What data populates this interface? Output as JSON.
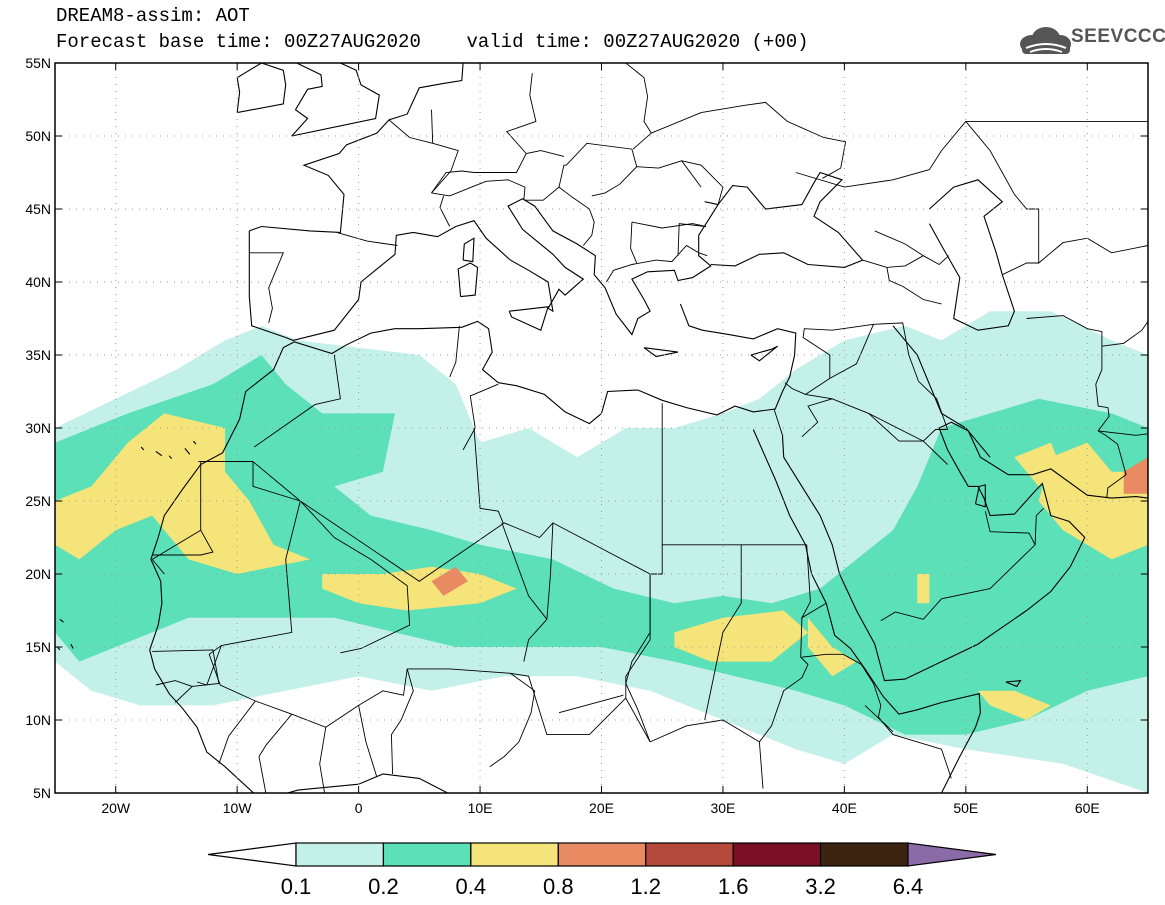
{
  "title": {
    "line1": "DREAM8-assim: AOT",
    "line2": "Forecast base time: 00Z27AUG2020    valid time: 00Z27AUG2020 (+00)"
  },
  "logo": {
    "text": "SEEVCCC",
    "icon": "cloud-icon"
  },
  "map": {
    "lon_range": [
      -25,
      65
    ],
    "lat_range": [
      5,
      55
    ],
    "lat_ticks": [
      {
        "value": 55,
        "label": "55N"
      },
      {
        "value": 50,
        "label": "50N"
      },
      {
        "value": 45,
        "label": "45N"
      },
      {
        "value": 40,
        "label": "40N"
      },
      {
        "value": 35,
        "label": "35N"
      },
      {
        "value": 30,
        "label": "30N"
      },
      {
        "value": 25,
        "label": "25N"
      },
      {
        "value": 20,
        "label": "20N"
      },
      {
        "value": 15,
        "label": "15N"
      },
      {
        "value": 10,
        "label": "10N"
      },
      {
        "value": 5,
        "label": "5N"
      }
    ],
    "lon_ticks": [
      {
        "value": -20,
        "label": "20W"
      },
      {
        "value": -10,
        "label": "10W"
      },
      {
        "value": 0,
        "label": "0"
      },
      {
        "value": 10,
        "label": "10E"
      },
      {
        "value": 20,
        "label": "20E"
      },
      {
        "value": 30,
        "label": "30E"
      },
      {
        "value": 40,
        "label": "40E"
      },
      {
        "value": 50,
        "label": "50E"
      },
      {
        "value": 60,
        "label": "60E"
      }
    ]
  },
  "colorbar": {
    "labels": [
      "0.1",
      "0.2",
      "0.4",
      "0.8",
      "1.2",
      "1.6",
      "3.2",
      "6.4"
    ],
    "colors": [
      "#c4f0ea",
      "#5ce0b8",
      "#f5e479",
      "#e88a62",
      "#b5493b",
      "#7a0f25",
      "#3c2410",
      "#8a6aa7"
    ],
    "under_color": "#ffffff"
  },
  "aot_fields": [
    {
      "level": 1,
      "color": "#c4f0ea",
      "polys": [
        [
          [
            -25,
            30
          ],
          [
            -20,
            32
          ],
          [
            -15,
            34
          ],
          [
            -11,
            36
          ],
          [
            -8,
            37
          ],
          [
            -5,
            36
          ],
          [
            0,
            35.5
          ],
          [
            5,
            35
          ],
          [
            8,
            33
          ],
          [
            10,
            29
          ],
          [
            14,
            30
          ],
          [
            18,
            28
          ],
          [
            22,
            30
          ],
          [
            26,
            30
          ],
          [
            30,
            31
          ],
          [
            33,
            32
          ],
          [
            36,
            34
          ],
          [
            40,
            36
          ],
          [
            45,
            37
          ],
          [
            48,
            36
          ],
          [
            52,
            38
          ],
          [
            57,
            38
          ],
          [
            62,
            36
          ],
          [
            65,
            35
          ],
          [
            65,
            5
          ],
          [
            58,
            7
          ],
          [
            50,
            8
          ],
          [
            44,
            9
          ],
          [
            40,
            7
          ],
          [
            36,
            8
          ],
          [
            30,
            10
          ],
          [
            24,
            12
          ],
          [
            18,
            13
          ],
          [
            12,
            13
          ],
          [
            6,
            12
          ],
          [
            0,
            13
          ],
          [
            -6,
            12
          ],
          [
            -12,
            11
          ],
          [
            -18,
            11
          ],
          [
            -22,
            12
          ],
          [
            -25,
            14
          ]
        ]
      ]
    },
    {
      "level": 2,
      "color": "#5ce0b8",
      "polys": [
        [
          [
            -25,
            29
          ],
          [
            -19,
            31
          ],
          [
            -12,
            33
          ],
          [
            -8,
            35
          ],
          [
            -6,
            33
          ],
          [
            -3,
            31
          ],
          [
            0,
            31
          ],
          [
            3,
            31
          ],
          [
            2,
            27
          ],
          [
            -2,
            26
          ],
          [
            1,
            24
          ],
          [
            6,
            23
          ],
          [
            10,
            22
          ],
          [
            16,
            21
          ],
          [
            21,
            19
          ],
          [
            26,
            18
          ],
          [
            30,
            18.5
          ],
          [
            34,
            18
          ],
          [
            38,
            19
          ],
          [
            41,
            21
          ],
          [
            44,
            23
          ],
          [
            46,
            26
          ],
          [
            48,
            30
          ],
          [
            52,
            31
          ],
          [
            56,
            32
          ],
          [
            62,
            31
          ],
          [
            65,
            30
          ],
          [
            65,
            13
          ],
          [
            60,
            12
          ],
          [
            55,
            10
          ],
          [
            50,
            9
          ],
          [
            45,
            9
          ],
          [
            40,
            11
          ],
          [
            36,
            12
          ],
          [
            31,
            13
          ],
          [
            26,
            14
          ],
          [
            20,
            15
          ],
          [
            14,
            15
          ],
          [
            8,
            15
          ],
          [
            3,
            16
          ],
          [
            -2,
            17
          ],
          [
            -7,
            17
          ],
          [
            -14,
            17
          ],
          [
            -20,
            15
          ],
          [
            -23,
            14
          ],
          [
            -25,
            16
          ]
        ]
      ]
    },
    {
      "level": 3,
      "color": "#f5e479",
      "polys": [
        [
          [
            -25,
            25
          ],
          [
            -22,
            26
          ],
          [
            -19,
            29
          ],
          [
            -16,
            31
          ],
          [
            -11,
            30
          ],
          [
            -11,
            27
          ],
          [
            -9,
            25
          ],
          [
            -7,
            22
          ],
          [
            -4,
            21
          ],
          [
            -10,
            20
          ],
          [
            -14,
            21
          ],
          [
            -17,
            24
          ],
          [
            -20,
            23
          ],
          [
            -23,
            21
          ],
          [
            -25,
            22
          ]
        ],
        [
          [
            -3,
            20
          ],
          [
            2,
            20
          ],
          [
            6,
            20.5
          ],
          [
            10,
            20
          ],
          [
            13,
            19
          ],
          [
            10,
            18
          ],
          [
            4,
            17.5
          ],
          [
            0,
            18
          ],
          [
            -3,
            19
          ]
        ],
        [
          [
            26,
            16
          ],
          [
            30,
            17
          ],
          [
            35,
            17.5
          ],
          [
            37,
            16
          ],
          [
            34,
            14
          ],
          [
            29,
            14
          ],
          [
            26,
            15
          ]
        ],
        [
          [
            37,
            17
          ],
          [
            39,
            15
          ],
          [
            41,
            14
          ],
          [
            39,
            13
          ],
          [
            37,
            15
          ]
        ],
        [
          [
            57,
            28
          ],
          [
            60,
            29
          ],
          [
            62,
            27
          ],
          [
            65,
            27
          ],
          [
            65,
            22
          ],
          [
            62,
            21
          ],
          [
            58,
            23
          ],
          [
            56,
            25
          ]
        ],
        [
          [
            54,
            28
          ],
          [
            57,
            29
          ],
          [
            58,
            27
          ],
          [
            56,
            26
          ]
        ],
        [
          [
            51,
            12
          ],
          [
            54,
            12
          ],
          [
            57,
            11
          ],
          [
            55,
            10
          ],
          [
            52,
            11
          ]
        ],
        [
          [
            46,
            20
          ],
          [
            47,
            20
          ],
          [
            47,
            18
          ],
          [
            46,
            18
          ]
        ]
      ]
    },
    {
      "level": 4,
      "color": "#e88a62",
      "polys": [
        [
          [
            6,
            19.5
          ],
          [
            8,
            20.5
          ],
          [
            9,
            19.5
          ],
          [
            7,
            18.5
          ]
        ],
        [
          [
            63,
            27
          ],
          [
            65,
            28
          ],
          [
            65,
            25.5
          ],
          [
            63,
            25.5
          ]
        ]
      ]
    }
  ]
}
